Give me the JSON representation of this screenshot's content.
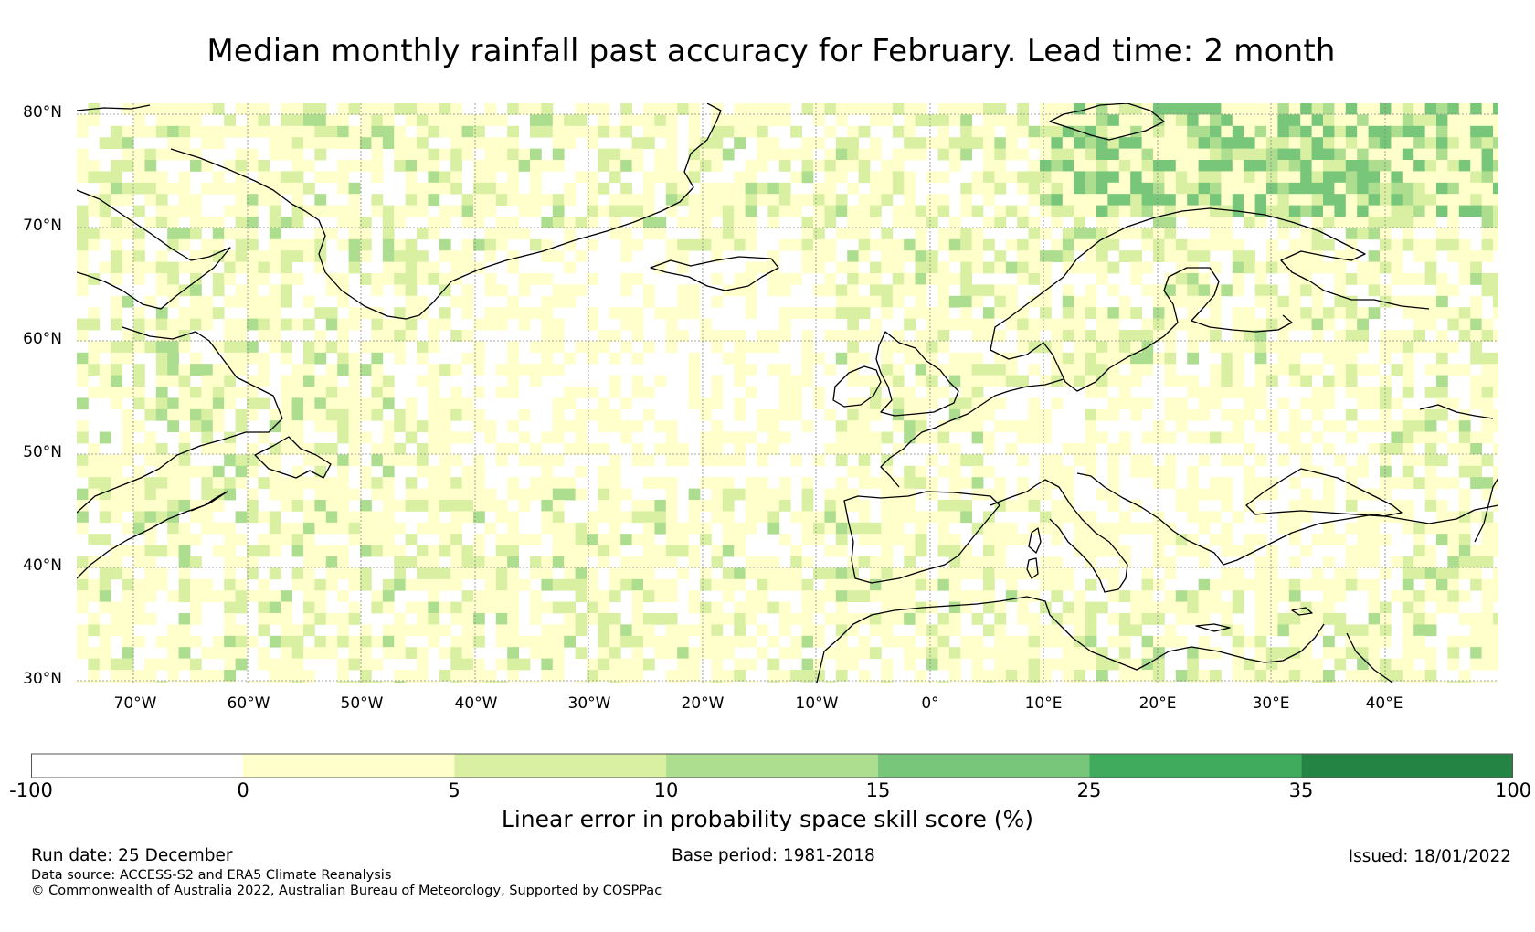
{
  "title": "Median monthly rainfall past accuracy for February. Lead time: 2 month",
  "map": {
    "region": "North Atlantic and Europe",
    "lat_labels": [
      "80°N",
      "70°N",
      "60°N",
      "50°N",
      "40°N",
      "30°N"
    ],
    "lon_labels": [
      "70°W",
      "60°W",
      "50°W",
      "40°W",
      "30°W",
      "20°W",
      "10°W",
      "0°",
      "10°E",
      "20°E",
      "30°E",
      "40°E"
    ],
    "extent": {
      "lon_min": -75,
      "lon_max": 50,
      "lat_min": 30,
      "lat_max": 81
    }
  },
  "colorbar": {
    "ticks": [
      "-100",
      "0",
      "5",
      "10",
      "15",
      "25",
      "35",
      "100"
    ],
    "colors": [
      "#ffffff",
      "#ffffcc",
      "#d9f0a3",
      "#addd8e",
      "#78c679",
      "#41ab5d",
      "#238443"
    ],
    "label": "Linear error in probability space skill score (%)"
  },
  "footer": {
    "run_date": "Run date: 25 December",
    "base_period": "Base period: 1981-2018",
    "issued": "Issued: 18/01/2022",
    "data_source": "Data source: ACCESS-S2 and ERA5 Climate Reanalysis",
    "copyright": "© Commonwealth of Australia 2022, Australian Bureau of Meteorology, Supported by COSPPac"
  }
}
